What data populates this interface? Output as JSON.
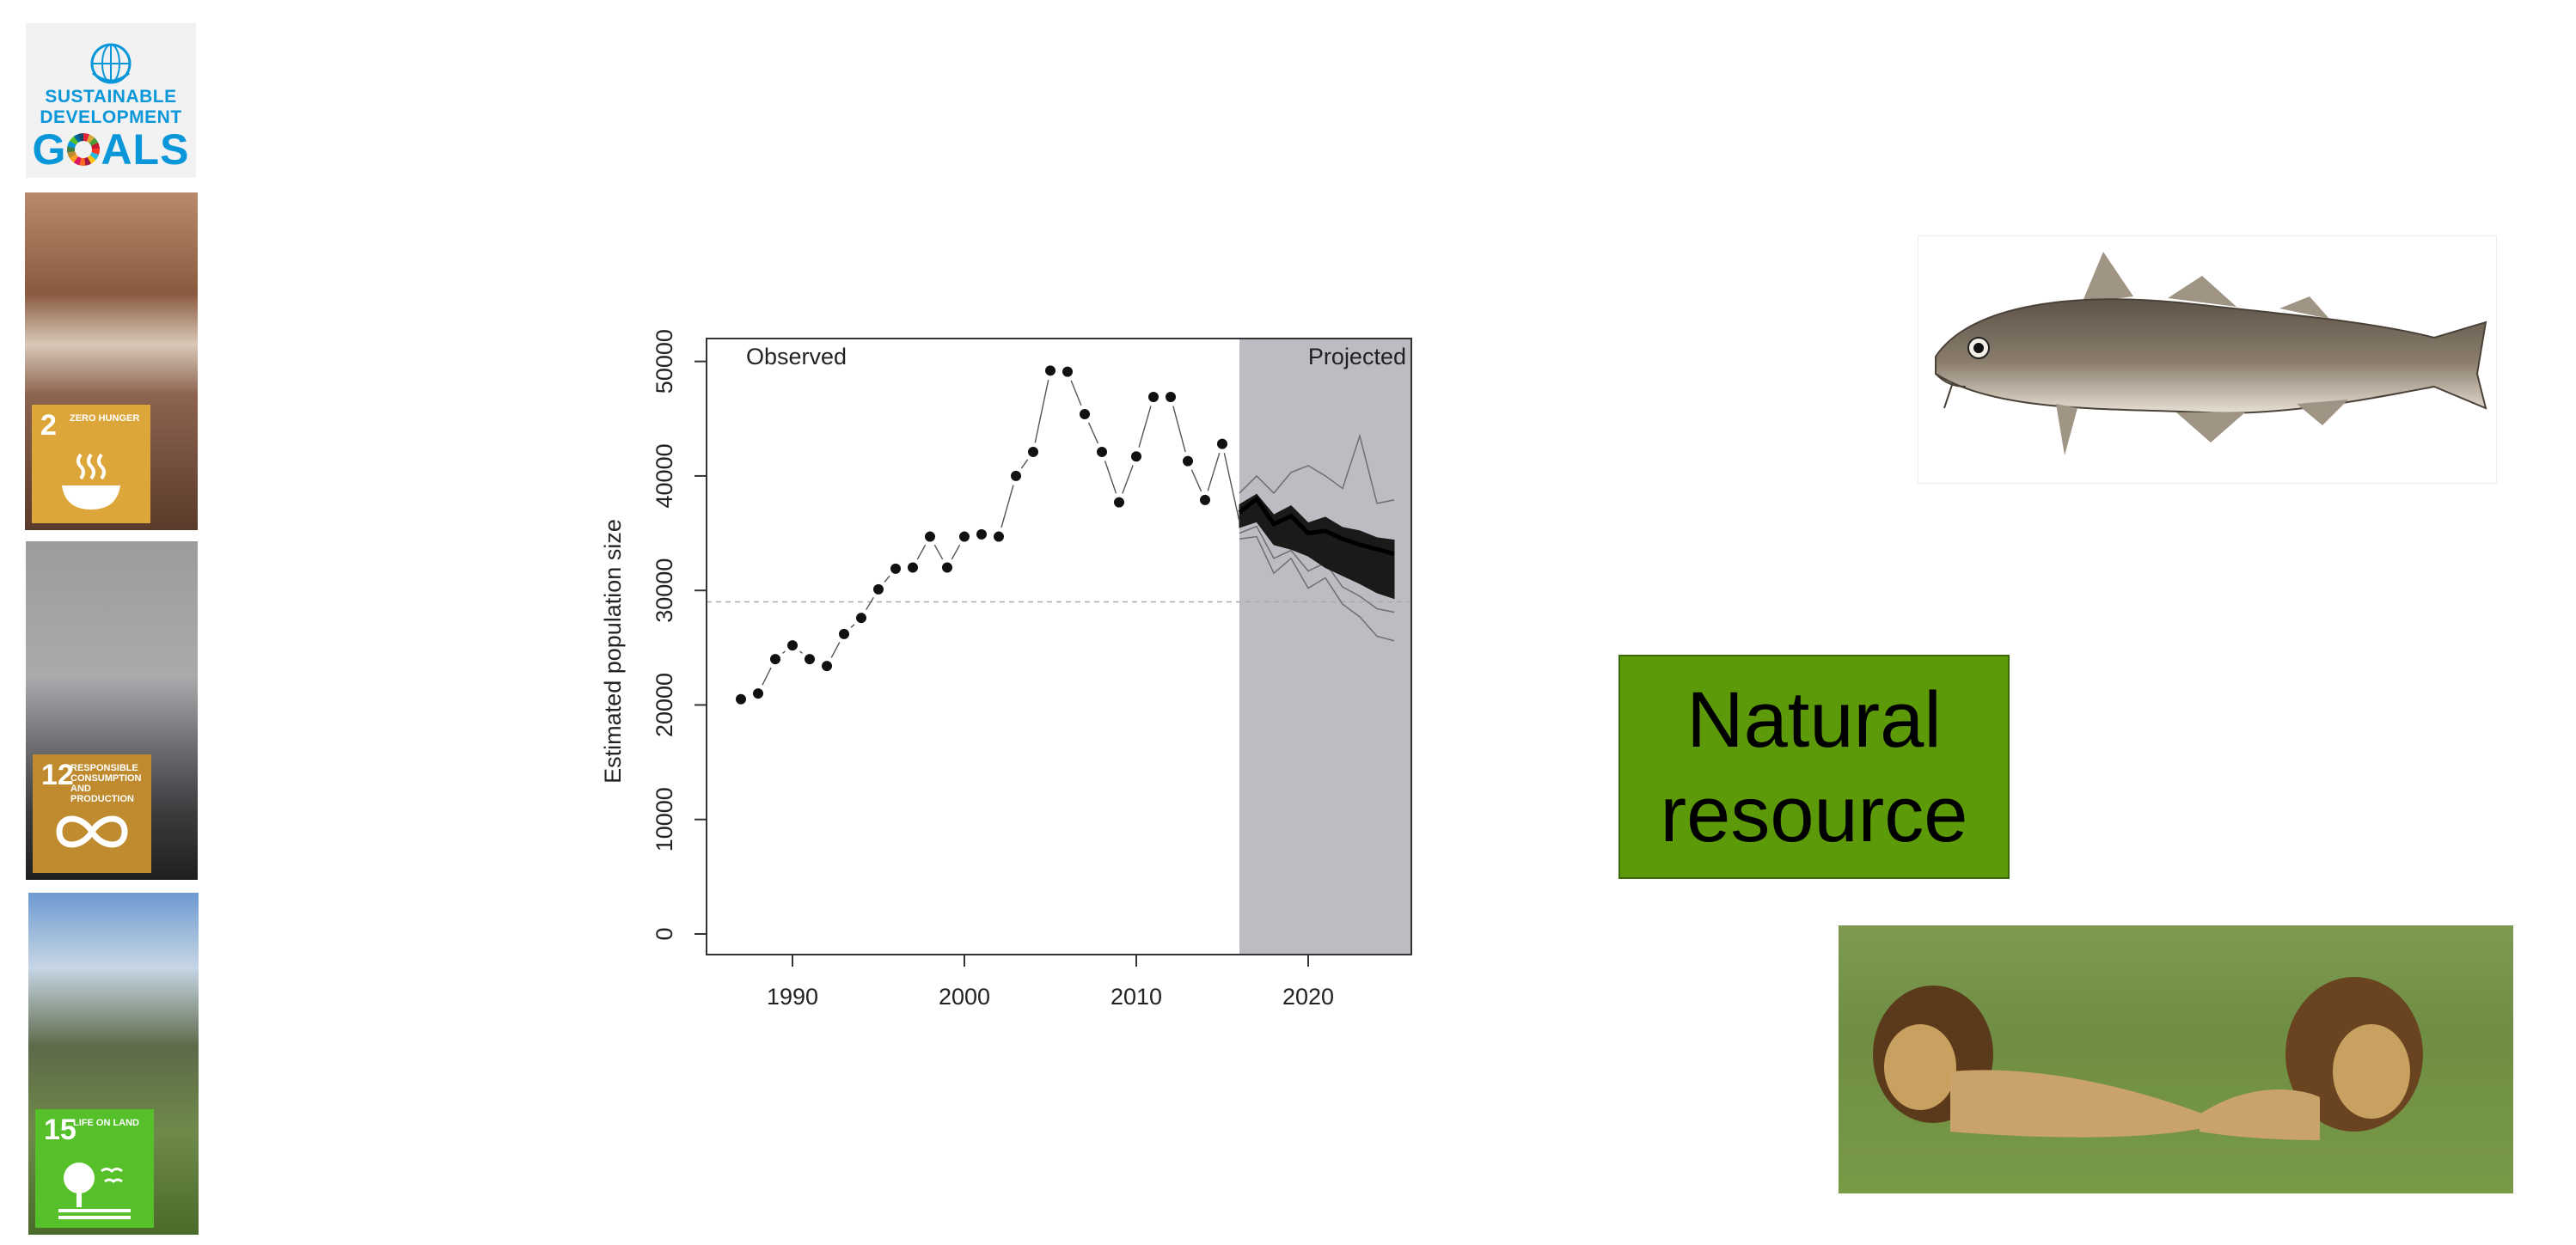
{
  "sidebar": {
    "logo": {
      "line1": "SUSTAINABLE",
      "line2": "DEVELOPMENT",
      "goals_pre": "G",
      "goals_post": "ALS",
      "icon": "un-globe-icon"
    },
    "tiles": [
      {
        "number": "2",
        "text": "ZERO HUNGER",
        "color": "#dda63a",
        "symbol": "bowl-icon"
      },
      {
        "number": "12",
        "text": "RESPONSIBLE CONSUMPTION AND PRODUCTION",
        "color": "#bf8b2e",
        "symbol": "infinity-icon"
      },
      {
        "number": "15",
        "text": "LIFE ON LAND",
        "color": "#56c02b",
        "symbol": "tree-icon"
      }
    ]
  },
  "chart_data": {
    "type": "scatter",
    "title": "",
    "xlabel": "",
    "ylabel": "Estimated population size",
    "xlim": [
      1985,
      2026
    ],
    "ylim": [
      -1800,
      52000
    ],
    "xticks": [
      1990,
      2000,
      2010,
      2020
    ],
    "yticks": [
      0,
      10000,
      20000,
      30000,
      40000,
      50000
    ],
    "grid": false,
    "annotations": {
      "observed": "Observed",
      "projected": "Projected"
    },
    "projection_start": 2016,
    "reference_line": 29000,
    "series": [
      {
        "x": [
          1987,
          1988,
          1989,
          1990,
          1991,
          1992,
          1993,
          1994,
          1995,
          1996,
          1997,
          1998,
          1999,
          2000,
          2001,
          2002,
          2003,
          2004,
          2005,
          2006,
          2007,
          2008,
          2009,
          2010,
          2011,
          2012,
          2013,
          2014,
          2015
        ],
        "y": [
          20500,
          21000,
          24000,
          25200,
          24000,
          23400,
          26200,
          27600,
          30100,
          31900,
          32000,
          34700,
          32000,
          34700,
          34900,
          34700,
          40000,
          42100,
          49200,
          49100,
          45400,
          42100,
          37700,
          41700,
          46900,
          46900,
          41300,
          37900,
          42800
        ]
      }
    ],
    "projection_start_value": 36000,
    "projection_band": {
      "x": [
        2016,
        2017,
        2018,
        2019,
        2020,
        2021,
        2022,
        2023,
        2024,
        2025
      ],
      "lower": [
        35500,
        36000,
        34000,
        33600,
        33000,
        32000,
        31300,
        30600,
        29800,
        29300
      ],
      "upper": [
        37500,
        38400,
        36600,
        37400,
        35900,
        36400,
        35500,
        35200,
        34600,
        34400
      ]
    },
    "projection_mid": {
      "x": [
        2016,
        2017,
        2018,
        2019,
        2020,
        2021,
        2022,
        2023,
        2024,
        2025
      ],
      "y": [
        36800,
        38000,
        35800,
        36500,
        35000,
        35200,
        34500,
        34000,
        33600,
        33200
      ]
    },
    "projection_outer": [
      {
        "x": [
          2016,
          2017,
          2018,
          2019,
          2020,
          2021,
          2022,
          2023,
          2024,
          2025
        ],
        "y": [
          38500,
          40000,
          38500,
          40300,
          40900,
          40000,
          38900,
          43500,
          37600,
          37900
        ]
      },
      {
        "x": [
          2016,
          2017,
          2018,
          2019,
          2020,
          2021,
          2022,
          2023,
          2024,
          2025
        ],
        "y": [
          34500,
          34700,
          31500,
          32800,
          30200,
          31100,
          28800,
          27700,
          26000,
          25600
        ]
      },
      {
        "x": [
          2016,
          2017,
          2018,
          2019,
          2020,
          2021,
          2022,
          2023,
          2024,
          2025
        ],
        "y": [
          35000,
          35600,
          32800,
          33500,
          31700,
          32400,
          30300,
          29500,
          28400,
          28100
        ]
      }
    ]
  },
  "box": {
    "line1": "Natural",
    "line2": "resource",
    "color": "#5d9a0a"
  },
  "images": {
    "fish": "cod-fish-icon",
    "lions": "lions-photo"
  }
}
